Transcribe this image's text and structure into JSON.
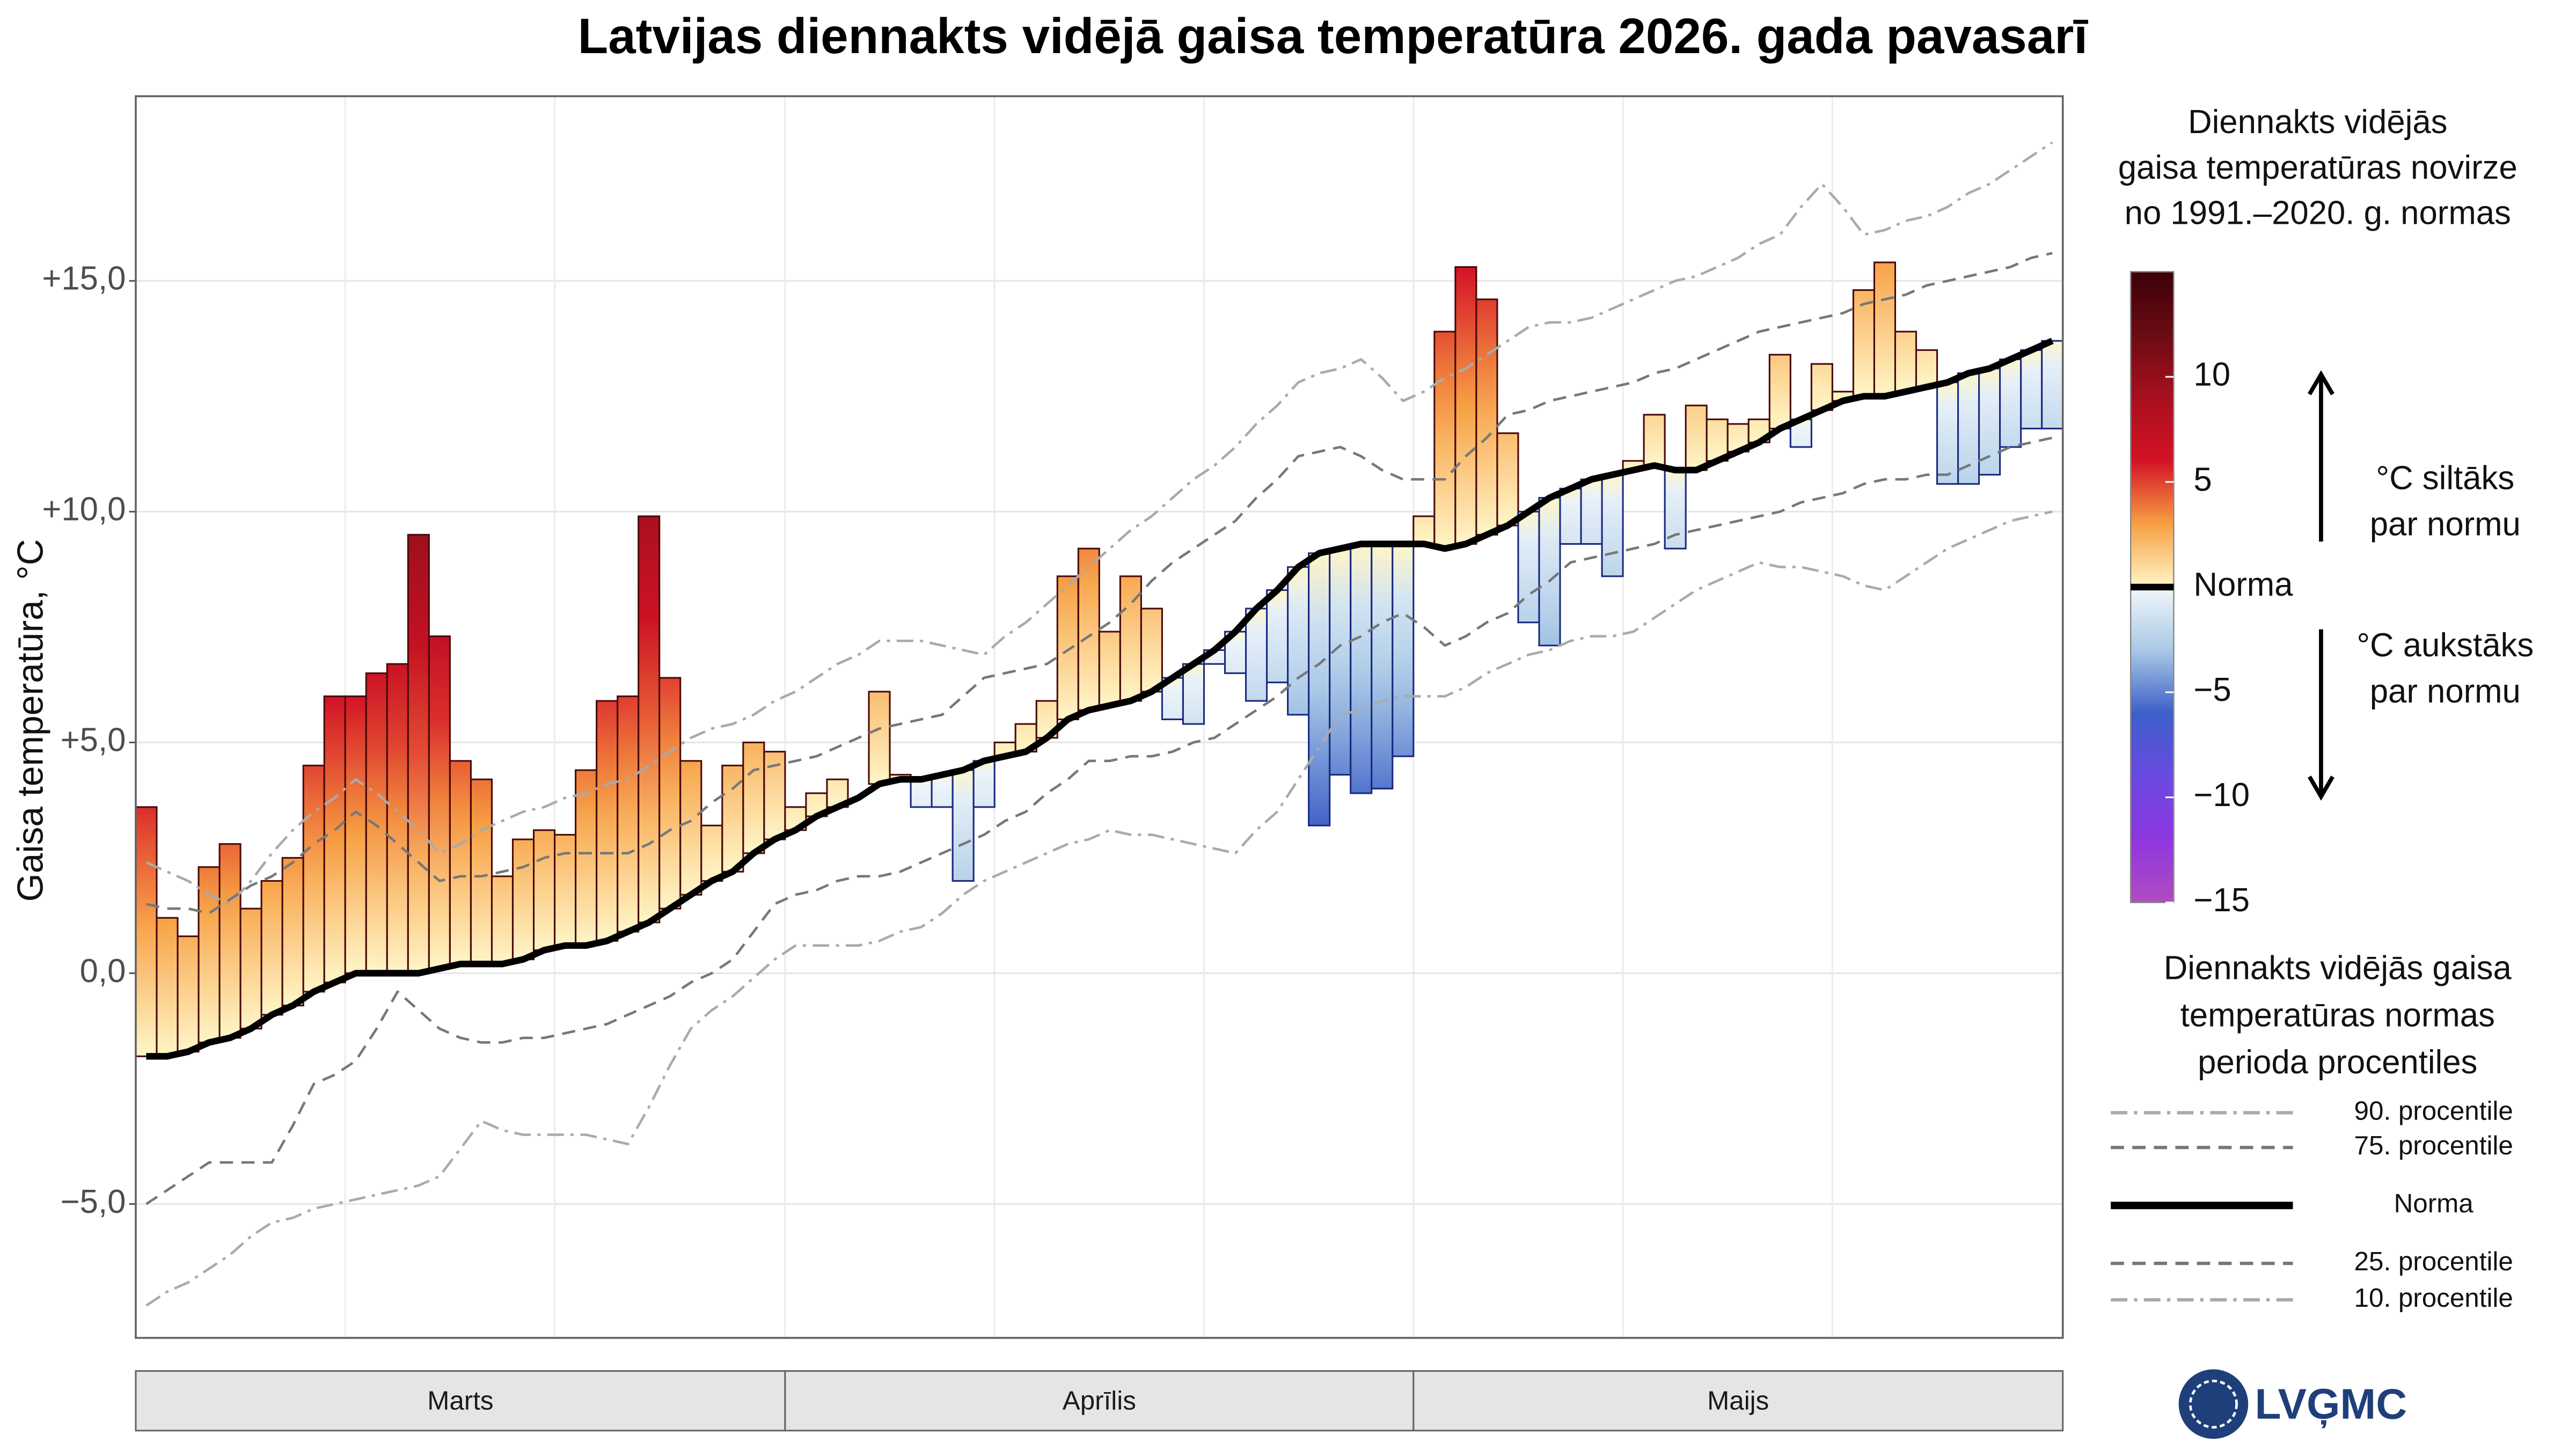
{
  "chart_data": {
    "type": "anomaly-step",
    "title": "Latvijas diennakts vidējā gaisa temperatūra 2026. gada pavasarī",
    "y_label": "Gaisa temperatūra, °C",
    "categories": [
      "Marts",
      "Marts",
      "Marts",
      "Marts",
      "Marts",
      "Marts",
      "Marts",
      "Marts",
      "Marts",
      "Marts",
      "Marts",
      "Marts",
      "Marts",
      "Marts",
      "Marts",
      "Marts",
      "Marts",
      "Marts",
      "Marts",
      "Marts",
      "Marts",
      "Marts",
      "Marts",
      "Marts",
      "Marts",
      "Marts",
      "Marts",
      "Marts",
      "Marts",
      "Marts",
      "Marts",
      "Aprīlis",
      "Aprīlis",
      "Aprīlis",
      "Aprīlis",
      "Aprīlis",
      "Aprīlis",
      "Aprīlis",
      "Aprīlis",
      "Aprīlis",
      "Aprīlis",
      "Aprīlis",
      "Aprīlis",
      "Aprīlis",
      "Aprīlis",
      "Aprīlis",
      "Aprīlis",
      "Aprīlis",
      "Aprīlis",
      "Aprīlis",
      "Aprīlis",
      "Aprīlis",
      "Aprīlis",
      "Aprīlis",
      "Aprīlis",
      "Aprīlis",
      "Aprīlis",
      "Aprīlis",
      "Aprīlis",
      "Aprīlis",
      "Aprīlis",
      "Maijs",
      "Maijs",
      "Maijs",
      "Maijs",
      "Maijs",
      "Maijs",
      "Maijs",
      "Maijs",
      "Maijs",
      "Maijs",
      "Maijs",
      "Maijs",
      "Maijs",
      "Maijs",
      "Maijs",
      "Maijs",
      "Maijs",
      "Maijs",
      "Maijs",
      "Maijs",
      "Maijs",
      "Maijs",
      "Maijs",
      "Maijs",
      "Maijs",
      "Maijs",
      "Maijs",
      "Maijs",
      "Maijs",
      "Maijs",
      "Maijs"
    ],
    "observed": {
      "values": [
        3.6,
        1.2,
        0.8,
        2.3,
        2.8,
        1.4,
        2.0,
        2.5,
        4.5,
        6.0,
        6.0,
        6.5,
        6.7,
        9.5,
        7.3,
        4.6,
        4.2,
        2.1,
        2.9,
        3.1,
        3.0,
        4.4,
        5.9,
        6.0,
        9.9,
        6.4,
        4.6,
        3.2,
        4.5,
        5.0,
        4.8,
        3.6,
        3.9,
        4.2,
        3.8,
        6.1,
        4.3,
        3.6,
        3.6,
        2.0,
        3.6,
        5.0,
        5.4,
        5.9,
        8.6,
        9.2,
        7.4,
        8.6,
        7.9,
        5.5,
        5.4,
        6.7,
        6.5,
        5.9,
        6.3,
        5.6,
        3.2,
        4.3,
        3.9,
        4.0,
        4.7,
        9.9,
        13.9,
        15.3,
        14.6,
        11.7,
        7.6,
        7.1,
        9.3,
        9.3,
        8.6,
        11.1,
        12.1,
        9.2,
        12.3,
        12.0,
        11.9,
        12.0,
        13.4,
        11.4,
        13.2,
        12.6,
        14.8,
        15.4,
        13.9,
        13.5,
        10.6,
        10.6,
        10.8,
        11.4,
        11.8,
        11.8
      ],
      "warm_outline": "#4a0a0a",
      "cool_outline": "#1a2a80"
    },
    "series": [
      {
        "name": "90. procentile",
        "color": "#aaaaaa",
        "style": "dashdot",
        "values": [
          2.4,
          2.2,
          2.0,
          1.7,
          1.5,
          2.0,
          2.6,
          3.1,
          3.5,
          3.8,
          4.2,
          3.9,
          3.5,
          3.1,
          2.6,
          2.8,
          3.1,
          3.3,
          3.5,
          3.6,
          3.8,
          3.9,
          4.1,
          4.2,
          4.5,
          4.8,
          5.1,
          5.3,
          5.4,
          5.6,
          5.9,
          6.1,
          6.4,
          6.7,
          6.9,
          7.2,
          7.2,
          7.2,
          7.1,
          7.0,
          6.9,
          7.3,
          7.6,
          8.0,
          8.4,
          8.8,
          9.2,
          9.6,
          9.9,
          10.3,
          10.7,
          11.0,
          11.4,
          11.9,
          12.3,
          12.8,
          13.0,
          13.1,
          13.3,
          12.9,
          12.4,
          12.6,
          12.9,
          13.1,
          13.4,
          13.7,
          14.0,
          14.1,
          14.1,
          14.2,
          14.4,
          14.6,
          14.8,
          15.0,
          15.1,
          15.3,
          15.5,
          15.8,
          16.0,
          16.6,
          17.1,
          16.6,
          16.0,
          16.1,
          16.3,
          16.4,
          16.6,
          16.9,
          17.1,
          17.4,
          17.7,
          18.0
        ]
      },
      {
        "name": "75. procentile",
        "color": "#777777",
        "style": "dashed",
        "values": [
          1.5,
          1.4,
          1.4,
          1.3,
          1.6,
          1.9,
          2.1,
          2.4,
          2.8,
          3.1,
          3.5,
          3.2,
          2.8,
          2.4,
          2.0,
          2.1,
          2.1,
          2.2,
          2.3,
          2.5,
          2.6,
          2.6,
          2.6,
          2.6,
          2.8,
          3.1,
          3.3,
          3.7,
          4.0,
          4.4,
          4.5,
          4.6,
          4.7,
          4.9,
          5.1,
          5.3,
          5.4,
          5.5,
          5.6,
          6.0,
          6.4,
          6.5,
          6.6,
          6.7,
          7.0,
          7.3,
          7.6,
          8.0,
          8.5,
          8.9,
          9.2,
          9.5,
          9.8,
          10.3,
          10.7,
          11.2,
          11.3,
          11.4,
          11.2,
          10.9,
          10.7,
          10.7,
          10.7,
          11.2,
          11.6,
          12.1,
          12.2,
          12.4,
          12.5,
          12.6,
          12.7,
          12.8,
          13.0,
          13.1,
          13.3,
          13.5,
          13.7,
          13.9,
          14.0,
          14.1,
          14.2,
          14.3,
          14.5,
          14.6,
          14.7,
          14.9,
          15.0,
          15.1,
          15.2,
          15.3,
          15.5,
          15.6
        ]
      },
      {
        "name": "Norma",
        "color": "#000000",
        "style": "solid",
        "values": [
          -1.8,
          -1.8,
          -1.7,
          -1.5,
          -1.4,
          -1.2,
          -0.9,
          -0.7,
          -0.4,
          -0.2,
          0,
          0,
          0,
          0,
          0.1,
          0.2,
          0.2,
          0.2,
          0.3,
          0.5,
          0.6,
          0.6,
          0.7,
          0.9,
          1.1,
          1.4,
          1.7,
          2.0,
          2.2,
          2.6,
          2.9,
          3.1,
          3.4,
          3.6,
          3.8,
          4.1,
          4.2,
          4.2,
          4.3,
          4.4,
          4.6,
          4.7,
          4.8,
          5.1,
          5.5,
          5.7,
          5.8,
          5.9,
          6.1,
          6.4,
          6.7,
          7.0,
          7.4,
          7.9,
          8.3,
          8.8,
          9.1,
          9.2,
          9.3,
          9.3,
          9.3,
          9.3,
          9.2,
          9.3,
          9.5,
          9.7,
          10.0,
          10.3,
          10.5,
          10.7,
          10.8,
          10.9,
          11.0,
          10.9,
          10.9,
          11.1,
          11.3,
          11.5,
          11.8,
          12.0,
          12.2,
          12.4,
          12.5,
          12.5,
          12.6,
          12.7,
          12.8,
          13.0,
          13.1,
          13.3,
          13.5,
          13.7
        ]
      },
      {
        "name": "25. procentile",
        "color": "#777777",
        "style": "dashed",
        "values": [
          -5.0,
          -4.7,
          -4.4,
          -4.1,
          -4.1,
          -4.1,
          -4.1,
          -3.3,
          -2.4,
          -2.2,
          -1.9,
          -1.2,
          -0.4,
          -0.8,
          -1.2,
          -1.4,
          -1.5,
          -1.5,
          -1.4,
          -1.4,
          -1.3,
          -1.2,
          -1.1,
          -0.9,
          -0.7,
          -0.5,
          -0.2,
          0.0,
          0.3,
          0.9,
          1.5,
          1.7,
          1.8,
          2.0,
          2.1,
          2.1,
          2.2,
          2.4,
          2.6,
          2.8,
          3.0,
          3.3,
          3.5,
          3.9,
          4.2,
          4.6,
          4.6,
          4.7,
          4.7,
          4.8,
          5.0,
          5.1,
          5.4,
          5.7,
          6.0,
          6.4,
          6.7,
          7.1,
          7.3,
          7.6,
          7.8,
          7.5,
          7.1,
          7.3,
          7.6,
          7.8,
          8.2,
          8.5,
          8.9,
          9.0,
          9.1,
          9.2,
          9.3,
          9.5,
          9.6,
          9.7,
          9.8,
          9.9,
          10.0,
          10.2,
          10.3,
          10.4,
          10.6,
          10.7,
          10.7,
          10.8,
          10.8,
          11.0,
          11.2,
          11.4,
          11.5,
          11.6
        ]
      },
      {
        "name": "10. procentile",
        "color": "#aaaaaa",
        "style": "dashdot",
        "values": [
          -7.2,
          -6.9,
          -6.7,
          -6.4,
          -6.1,
          -5.7,
          -5.4,
          -5.3,
          -5.1,
          -5.0,
          -4.9,
          -4.8,
          -4.7,
          -4.6,
          -4.4,
          -3.8,
          -3.2,
          -3.4,
          -3.5,
          -3.5,
          -3.5,
          -3.5,
          -3.6,
          -3.7,
          -2.9,
          -2.0,
          -1.2,
          -0.8,
          -0.5,
          -0.1,
          0.3,
          0.6,
          0.6,
          0.6,
          0.6,
          0.7,
          0.9,
          1.0,
          1.3,
          1.7,
          2.0,
          2.2,
          2.4,
          2.6,
          2.8,
          2.9,
          3.1,
          3.0,
          3.0,
          2.9,
          2.8,
          2.7,
          2.6,
          3.1,
          3.5,
          4.2,
          4.9,
          5.6,
          5.7,
          5.9,
          6.0,
          6.0,
          6.0,
          6.2,
          6.5,
          6.7,
          6.9,
          7.0,
          7.2,
          7.3,
          7.3,
          7.4,
          7.7,
          8.0,
          8.3,
          8.5,
          8.7,
          8.9,
          8.8,
          8.8,
          8.7,
          8.6,
          8.4,
          8.3,
          8.6,
          8.9,
          9.2,
          9.4,
          9.6,
          9.8,
          9.9,
          10.0
        ]
      }
    ],
    "ylim": [
      -7.9,
      19
    ],
    "yticks": [
      {
        "value": 15,
        "label": "+15,0"
      },
      {
        "value": 10,
        "label": "+10,0"
      },
      {
        "value": 5,
        "label": "+5,0"
      },
      {
        "value": 0,
        "label": "0,0"
      },
      {
        "value": -5,
        "label": "−5,0"
      }
    ],
    "grid": true,
    "colorbar": {
      "title_lines": [
        "Diennakts vidējās",
        "gaisa temperatūras novirze",
        "no 1991.–2020. g. normas"
      ],
      "lim": [
        -15,
        15
      ],
      "ticks": [
        10,
        5,
        {
          "value": 0,
          "label": "Norma"
        },
        {
          "value": -5,
          "label": "−5"
        },
        {
          "value": -10,
          "label": "−10"
        },
        {
          "value": -15,
          "label": "−15"
        }
      ],
      "warm_colors": [
        "#fff6c8",
        "#f7a043",
        "#d41226",
        "#a8101e",
        "#6b0b14",
        "#3d0008"
      ],
      "cool_colors": [
        "#f2f7fb",
        "#a9c9e6",
        "#3d5fc8",
        "#6a4ae0",
        "#8e36e0",
        "#b04cc0"
      ],
      "warm_label": [
        "°C siltāks",
        "par normu"
      ],
      "cool_label": [
        "°C aukstāks",
        "par normu"
      ]
    },
    "legend_title_lines": [
      "Diennakts vidējās gaisa",
      "temperatūras normas",
      "perioda procentiles"
    ],
    "logo": "LVĢMC"
  }
}
